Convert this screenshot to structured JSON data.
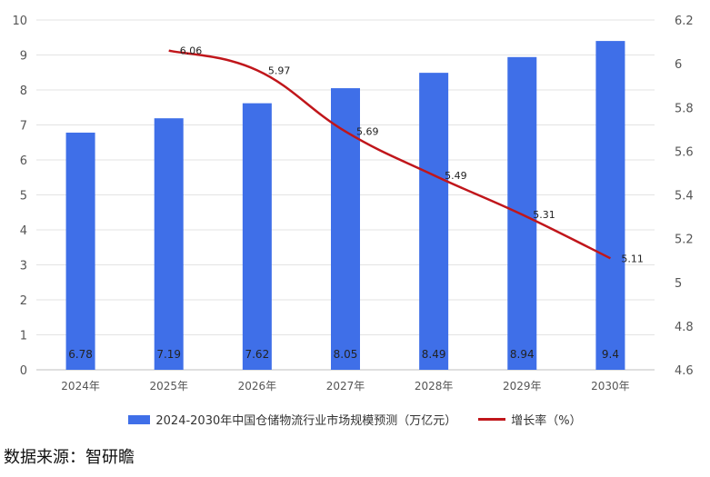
{
  "chart_data": {
    "type": "bar",
    "categories": [
      "2024年",
      "2025年",
      "2026年",
      "2027年",
      "2028年",
      "2029年",
      "2030年"
    ],
    "series": [
      {
        "name": "2024-2030年中国仓储物流行业市场规模预测（万亿元）",
        "type": "bar",
        "axis": "left",
        "values": [
          6.78,
          7.19,
          7.62,
          8.05,
          8.49,
          8.94,
          9.4
        ],
        "labels": [
          "6.78",
          "7.19",
          "7.62",
          "8.05",
          "8.49",
          "8.94",
          "9.4"
        ],
        "color": "#3f6fe8"
      },
      {
        "name": "增长率（%）",
        "type": "line",
        "axis": "right",
        "values": [
          null,
          6.06,
          5.97,
          5.69,
          5.49,
          5.31,
          5.11
        ],
        "labels": [
          "",
          "6.06",
          "5.97",
          "5.69",
          "5.49",
          "5.31",
          "5.11"
        ],
        "color": "#c0161b"
      }
    ],
    "y_left": {
      "ylim": [
        0,
        10
      ],
      "ticks": [
        "0",
        "1",
        "2",
        "3",
        "4",
        "5",
        "6",
        "7",
        "8",
        "9",
        "10"
      ]
    },
    "y_right": {
      "ylim": [
        4.6,
        6.2
      ],
      "ticks": [
        "4.6",
        "4.8",
        "5",
        "5.2",
        "5.4",
        "5.6",
        "5.8",
        "6",
        "6.2"
      ]
    },
    "grid": true,
    "legend_position": "bottom"
  },
  "source_text": "数据来源：智研瞻"
}
